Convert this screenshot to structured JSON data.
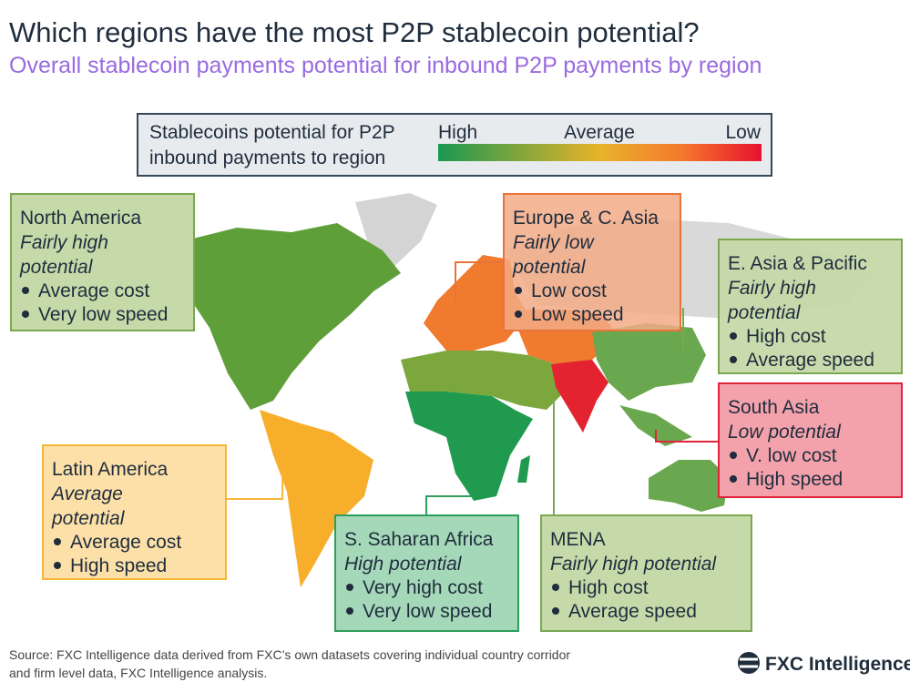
{
  "header": {
    "title": "Which regions have the most P2P stablecoin potential?",
    "subtitle": "Overall stablecoin payments potential for inbound P2P payments by region"
  },
  "legend": {
    "label": [
      "Stablecoins potential for P2P",
      "inbound payments to region"
    ],
    "scale": [
      "High",
      "Average",
      "Low"
    ]
  },
  "regions": [
    {
      "name": "North America",
      "potential": [
        "Fairly high",
        "potential"
      ],
      "bullets": [
        "Average cost",
        "Very low speed"
      ]
    },
    {
      "name": "Europe & C. Asia",
      "potential": [
        "Fairly low",
        "potential"
      ],
      "bullets": [
        "Low cost",
        "Low speed"
      ]
    },
    {
      "name": "E. Asia & Pacific",
      "potential": [
        "Fairly high",
        "potential"
      ],
      "bullets": [
        "High cost",
        "Average speed"
      ]
    },
    {
      "name": "South Asia",
      "potential": [
        "Low potential"
      ],
      "bullets": [
        "V. low cost",
        "High speed"
      ]
    },
    {
      "name": "Latin America",
      "potential": [
        "Average",
        "potential"
      ],
      "bullets": [
        "Average cost",
        "High speed"
      ]
    },
    {
      "name": "S. Saharan Africa",
      "potential": [
        "High potential"
      ],
      "bullets": [
        "Very high cost",
        "Very low speed"
      ]
    },
    {
      "name": "MENA",
      "potential": [
        "Fairly high potential"
      ],
      "bullets": [
        "High cost",
        "Average speed"
      ]
    }
  ],
  "footer": {
    "source": [
      "Source: FXC Intelligence data derived from FXC’s own datasets covering individual country corridor",
      "and firm level data, FXC Intelligence analysis."
    ],
    "brand": "FXC Intelligence"
  }
}
